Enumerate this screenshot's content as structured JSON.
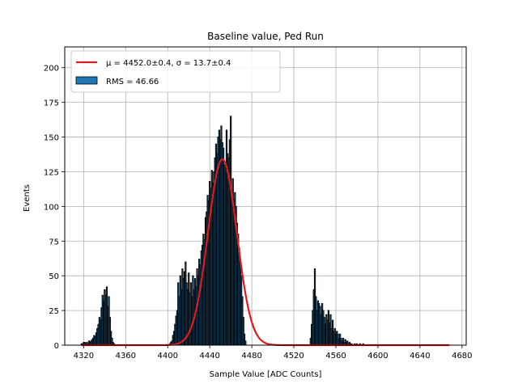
{
  "chart_data": {
    "type": "bar",
    "title": "Baseline value, Ped Run",
    "xlabel": "Sample Value [ADC Counts]",
    "ylabel": "Events",
    "xlim": [
      4302,
      4684
    ],
    "ylim": [
      0,
      215
    ],
    "xticks": [
      4320,
      4360,
      4400,
      4440,
      4480,
      4520,
      4560,
      4600,
      4640,
      4680
    ],
    "yticks": [
      0,
      25,
      50,
      75,
      100,
      125,
      150,
      175,
      200
    ],
    "grid": true,
    "legend_position": "top-left",
    "legend": {
      "fit_label": "μ = 4452.0±0.4, σ = 13.7±0.4",
      "hist_label": "RMS = 46.66"
    },
    "colors": {
      "bar_fill": "#1f77b4",
      "bar_edge": "#000000",
      "fit_line": "#e31a1c",
      "grid": "#b0b0b0"
    },
    "histogram": {
      "bin_width": 1,
      "bins": [
        [
          4318,
          1
        ],
        [
          4319,
          1
        ],
        [
          4320,
          2
        ],
        [
          4321,
          2
        ],
        [
          4322,
          1
        ],
        [
          4323,
          2
        ],
        [
          4324,
          1
        ],
        [
          4325,
          3
        ],
        [
          4326,
          2
        ],
        [
          4327,
          3
        ],
        [
          4328,
          4
        ],
        [
          4329,
          5
        ],
        [
          4330,
          7
        ],
        [
          4331,
          6
        ],
        [
          4332,
          9
        ],
        [
          4333,
          12
        ],
        [
          4334,
          15
        ],
        [
          4335,
          20
        ],
        [
          4336,
          18
        ],
        [
          4337,
          27
        ],
        [
          4338,
          36
        ],
        [
          4339,
          32
        ],
        [
          4340,
          40
        ],
        [
          4341,
          36
        ],
        [
          4342,
          42
        ],
        [
          4343,
          28
        ],
        [
          4344,
          35
        ],
        [
          4345,
          20
        ],
        [
          4346,
          10
        ],
        [
          4347,
          5
        ],
        [
          4348,
          2
        ],
        [
          4349,
          1
        ],
        [
          4402,
          1
        ],
        [
          4403,
          2
        ],
        [
          4404,
          3
        ],
        [
          4405,
          7
        ],
        [
          4406,
          10
        ],
        [
          4407,
          15
        ],
        [
          4408,
          21
        ],
        [
          4409,
          25
        ],
        [
          4410,
          45
        ],
        [
          4411,
          35
        ],
        [
          4412,
          50
        ],
        [
          4413,
          40
        ],
        [
          4414,
          55
        ],
        [
          4415,
          48
        ],
        [
          4416,
          53
        ],
        [
          4417,
          60
        ],
        [
          4418,
          45
        ],
        [
          4419,
          40
        ],
        [
          4420,
          52
        ],
        [
          4421,
          38
        ],
        [
          4422,
          45
        ],
        [
          4423,
          35
        ],
        [
          4424,
          50
        ],
        [
          4425,
          40
        ],
        [
          4426,
          48
        ],
        [
          4427,
          42
        ],
        [
          4428,
          55
        ],
        [
          4429,
          50
        ],
        [
          4430,
          62
        ],
        [
          4431,
          58
        ],
        [
          4432,
          68
        ],
        [
          4433,
          72
        ],
        [
          4434,
          80
        ],
        [
          4435,
          76
        ],
        [
          4436,
          92
        ],
        [
          4437,
          96
        ],
        [
          4438,
          108
        ],
        [
          4439,
          104
        ],
        [
          4440,
          118
        ],
        [
          4441,
          113
        ],
        [
          4442,
          126
        ],
        [
          4443,
          117
        ],
        [
          4444,
          125
        ],
        [
          4445,
          135
        ],
        [
          4446,
          145
        ],
        [
          4447,
          138
        ],
        [
          4448,
          150
        ],
        [
          4449,
          155
        ],
        [
          4450,
          148
        ],
        [
          4451,
          158
        ],
        [
          4452,
          146
        ],
        [
          4453,
          142
        ],
        [
          4454,
          130
        ],
        [
          4455,
          128
        ],
        [
          4456,
          155
        ],
        [
          4457,
          138
        ],
        [
          4458,
          135
        ],
        [
          4459,
          148
        ],
        [
          4460,
          165
        ],
        [
          4461,
          112
        ],
        [
          4462,
          120
        ],
        [
          4463,
          105
        ],
        [
          4464,
          110
        ],
        [
          4465,
          100
        ],
        [
          4466,
          88
        ],
        [
          4467,
          80
        ],
        [
          4468,
          70
        ],
        [
          4469,
          60
        ],
        [
          4470,
          50
        ],
        [
          4471,
          35
        ],
        [
          4472,
          20
        ],
        [
          4473,
          8
        ],
        [
          4474,
          3
        ],
        [
          4536,
          5
        ],
        [
          4537,
          15
        ],
        [
          4538,
          25
        ],
        [
          4539,
          40
        ],
        [
          4540,
          55
        ],
        [
          4541,
          35
        ],
        [
          4542,
          25
        ],
        [
          4543,
          32
        ],
        [
          4544,
          30
        ],
        [
          4545,
          28
        ],
        [
          4546,
          22
        ],
        [
          4547,
          30
        ],
        [
          4548,
          25
        ],
        [
          4549,
          20
        ],
        [
          4550,
          15
        ],
        [
          4551,
          22
        ],
        [
          4552,
          18
        ],
        [
          4553,
          25
        ],
        [
          4554,
          16
        ],
        [
          4555,
          22
        ],
        [
          4556,
          12
        ],
        [
          4557,
          18
        ],
        [
          4558,
          10
        ],
        [
          4559,
          12
        ],
        [
          4560,
          8
        ],
        [
          4561,
          10
        ],
        [
          4562,
          8
        ],
        [
          4563,
          5
        ],
        [
          4564,
          8
        ],
        [
          4565,
          5
        ],
        [
          4566,
          3
        ],
        [
          4567,
          5
        ],
        [
          4568,
          2
        ],
        [
          4569,
          4
        ],
        [
          4570,
          2
        ],
        [
          4571,
          3
        ],
        [
          4572,
          1
        ],
        [
          4573,
          2
        ],
        [
          4574,
          1
        ],
        [
          4575,
          1
        ],
        [
          4578,
          1
        ],
        [
          4580,
          1
        ],
        [
          4583,
          1
        ],
        [
          4586,
          1
        ]
      ]
    },
    "fit": {
      "type": "gaussian",
      "mu": 4452.0,
      "sigma": 13.7,
      "amplitude": 134,
      "x_range": [
        4318,
        4668
      ]
    }
  }
}
